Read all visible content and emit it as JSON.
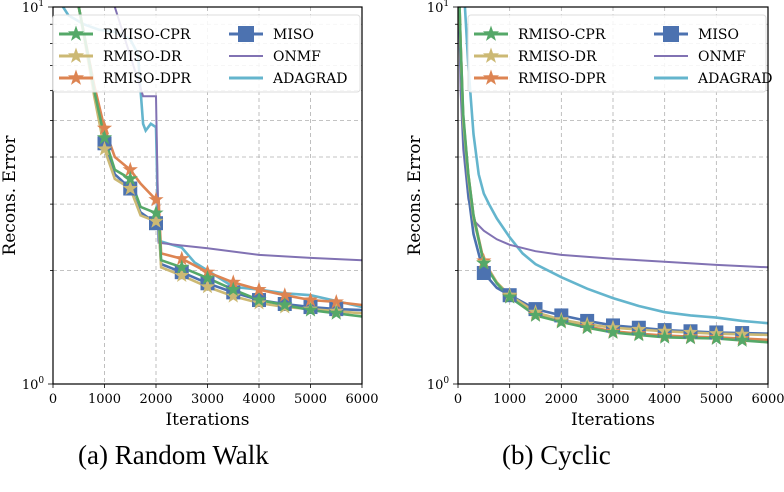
{
  "chart_data": [
    {
      "type": "line",
      "caption": "(a) Random Walk",
      "xlabel": "Iterations",
      "ylabel": "Recons. Error",
      "xlim": [
        0,
        6000
      ],
      "ylim": [
        1,
        10
      ],
      "yscale": "log",
      "grid": true,
      "legend": "top",
      "xticks": [
        "0",
        "1000",
        "2000",
        "3000",
        "4000",
        "5000",
        "6000"
      ],
      "yticks": [
        {
          "base": "10",
          "exp": "0"
        },
        {
          "base": "10",
          "exp": "1"
        }
      ],
      "series": [
        {
          "name": "RMISO-CPR",
          "color": "#55a868",
          "marker": "star",
          "x": [
            300,
            500,
            700,
            800,
            1000,
            1200,
            1500,
            1700,
            2000,
            2050,
            2100,
            2500,
            3000,
            3500,
            4000,
            4500,
            5000,
            5500,
            6000
          ],
          "y": [
            14,
            10,
            7.2,
            6.0,
            4.5,
            3.7,
            3.5,
            2.95,
            2.84,
            2.84,
            2.13,
            2.04,
            1.91,
            1.78,
            1.67,
            1.62,
            1.57,
            1.54,
            1.51
          ]
        },
        {
          "name": "RMISO-DR",
          "color": "#ccb974",
          "marker": "star",
          "x": [
            300,
            500,
            700,
            800,
            1000,
            1200,
            1500,
            1700,
            2000,
            2050,
            2100,
            2500,
            3000,
            3500,
            4000,
            4500,
            5000,
            5500,
            6000
          ],
          "y": [
            14,
            10,
            7.0,
            5.8,
            4.2,
            3.5,
            3.3,
            2.8,
            2.7,
            2.7,
            2.04,
            1.94,
            1.81,
            1.71,
            1.64,
            1.6,
            1.58,
            1.56,
            1.54
          ]
        },
        {
          "name": "RMISO-DPR",
          "color": "#dd8452",
          "marker": "star",
          "x": [
            300,
            500,
            700,
            800,
            1000,
            1200,
            1500,
            1700,
            2000,
            2050,
            2100,
            2500,
            3000,
            3500,
            4000,
            4500,
            5000,
            5500,
            6000
          ],
          "y": [
            14,
            10,
            7.3,
            6.2,
            4.77,
            4.0,
            3.7,
            3.4,
            3.08,
            3.08,
            2.22,
            2.15,
            1.98,
            1.86,
            1.78,
            1.72,
            1.67,
            1.65,
            1.62
          ]
        },
        {
          "name": "MISO",
          "color": "#4c72b0",
          "marker": "square",
          "x": [
            300,
            500,
            700,
            800,
            1000,
            1200,
            1500,
            1700,
            2000,
            2050,
            2100,
            2500,
            3000,
            3500,
            4000,
            4500,
            5000,
            5500,
            6000
          ],
          "y": [
            14,
            10,
            7.1,
            5.9,
            4.35,
            3.6,
            3.3,
            2.85,
            2.67,
            2.67,
            2.08,
            1.98,
            1.85,
            1.75,
            1.67,
            1.63,
            1.6,
            1.58,
            1.57
          ]
        },
        {
          "name": "ONMF",
          "color": "#8172b3",
          "marker": "none",
          "x": [
            1150,
            1200,
            1750,
            2000,
            2050,
            2500,
            3000,
            4000,
            5000,
            6000
          ],
          "y": [
            14,
            10,
            5.8,
            5.8,
            2.37,
            2.33,
            2.29,
            2.2,
            2.16,
            2.13
          ]
        },
        {
          "name": "ADAGRAD",
          "color": "#64b5cd",
          "marker": "none",
          "x": [
            0,
            300,
            600,
            900,
            1200,
            1500,
            1650,
            1700,
            1750,
            1800,
            1900,
            2000,
            2050,
            2500,
            2750,
            3000,
            3500,
            4000,
            4500,
            5000,
            5500,
            6000
          ],
          "y": [
            11,
            9.5,
            9,
            8.7,
            8.6,
            8.2,
            7.5,
            6.0,
            4.9,
            4.7,
            4.9,
            4.8,
            2.4,
            2.3,
            2.1,
            2.0,
            1.81,
            1.78,
            1.74,
            1.72,
            1.66,
            1.6
          ]
        }
      ]
    },
    {
      "type": "line",
      "caption": "(b) Cyclic",
      "xlabel": "Iterations",
      "ylabel": "Recons. Error",
      "xlim": [
        0,
        6000
      ],
      "ylim": [
        1,
        10
      ],
      "yscale": "log",
      "grid": true,
      "legend": "top",
      "xticks": [
        "0",
        "1000",
        "2000",
        "3000",
        "4000",
        "5000",
        "6000"
      ],
      "yticks": [
        {
          "base": "10",
          "exp": "0"
        },
        {
          "base": "10",
          "exp": "1"
        }
      ],
      "series": [
        {
          "name": "RMISO-CPR",
          "color": "#55a868",
          "marker": "star",
          "x": [
            0,
            50,
            100,
            200,
            300,
            500,
            750,
            1000,
            1500,
            2000,
            2500,
            3000,
            3500,
            4000,
            4500,
            5000,
            5500,
            6000
          ],
          "y": [
            14,
            8,
            5.2,
            3.6,
            2.8,
            2.09,
            1.85,
            1.7,
            1.52,
            1.46,
            1.41,
            1.37,
            1.35,
            1.33,
            1.325,
            1.32,
            1.305,
            1.29
          ]
        },
        {
          "name": "RMISO-DR",
          "color": "#ccb974",
          "marker": "star",
          "x": [
            0,
            50,
            100,
            200,
            300,
            500,
            750,
            1000,
            1500,
            2000,
            2500,
            3000,
            3500,
            4000,
            4500,
            5000,
            5500,
            6000
          ],
          "y": [
            14,
            8,
            5.0,
            3.5,
            2.75,
            2.1,
            1.86,
            1.72,
            1.55,
            1.48,
            1.44,
            1.41,
            1.395,
            1.38,
            1.37,
            1.36,
            1.355,
            1.35
          ]
        },
        {
          "name": "RMISO-DPR",
          "color": "#dd8452",
          "marker": "star",
          "x": [
            0,
            50,
            100,
            200,
            300,
            500,
            750,
            1000,
            1500,
            2000,
            2500,
            3000,
            3500,
            4000,
            4500,
            5000,
            5500,
            6000
          ],
          "y": [
            14,
            8,
            5.1,
            3.6,
            2.8,
            2.12,
            1.86,
            1.71,
            1.53,
            1.47,
            1.42,
            1.38,
            1.36,
            1.345,
            1.335,
            1.33,
            1.32,
            1.31
          ]
        },
        {
          "name": "MISO",
          "color": "#4c72b0",
          "marker": "square",
          "x": [
            0,
            50,
            100,
            200,
            300,
            500,
            750,
            1000,
            1500,
            2000,
            2500,
            3000,
            3500,
            4000,
            4500,
            5000,
            5500,
            6000
          ],
          "y": [
            14,
            7.5,
            4.6,
            3.2,
            2.5,
            1.97,
            1.8,
            1.72,
            1.58,
            1.52,
            1.47,
            1.43,
            1.41,
            1.39,
            1.38,
            1.37,
            1.365,
            1.36
          ]
        },
        {
          "name": "ONMF",
          "color": "#8172b3",
          "marker": "none",
          "x": [
            0,
            50,
            100,
            200,
            300,
            500,
            750,
            1000,
            1500,
            2000,
            3000,
            4000,
            5000,
            6000
          ],
          "y": [
            14,
            6,
            4.2,
            3.1,
            2.72,
            2.55,
            2.42,
            2.34,
            2.25,
            2.2,
            2.15,
            2.11,
            2.07,
            2.04
          ]
        },
        {
          "name": "ADAGRAD",
          "color": "#64b5cd",
          "marker": "none",
          "x": [
            100,
            200,
            300,
            400,
            500,
            600,
            750,
            1000,
            1250,
            1500,
            2000,
            2500,
            3000,
            3500,
            4000,
            4500,
            5000,
            5500,
            6000
          ],
          "y": [
            12,
            7,
            4.6,
            3.6,
            3.2,
            3.0,
            2.75,
            2.45,
            2.22,
            2.08,
            1.92,
            1.79,
            1.69,
            1.61,
            1.55,
            1.52,
            1.5,
            1.47,
            1.45
          ]
        }
      ]
    }
  ]
}
